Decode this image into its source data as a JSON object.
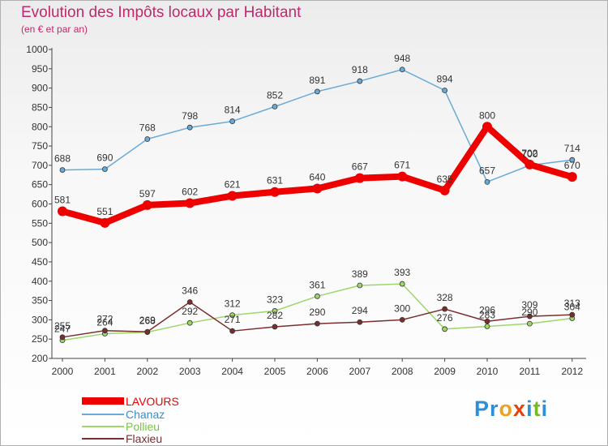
{
  "header": {
    "title": "Evolution des Impôts locaux par Habitant",
    "subtitle": "(en € et par an)"
  },
  "logo": {
    "letters": [
      "P",
      "r",
      "o",
      "x",
      "i",
      "t",
      "i"
    ],
    "colors": [
      "#2f8fd6",
      "#2f8fd6",
      "#f0a020",
      "#e8400c",
      "#2f8fd6",
      "#7ab828",
      "#2f8fd6"
    ]
  },
  "chart_data": {
    "type": "line",
    "title": "Evolution des Impôts locaux par Habitant",
    "subtitle": "(en € et par an)",
    "xlabel": "",
    "ylabel": "",
    "x": [
      "2000",
      "2001",
      "2002",
      "2003",
      "2004",
      "2005",
      "2006",
      "2007",
      "2008",
      "2009",
      "2010",
      "2011",
      "2012"
    ],
    "ylim": [
      200,
      1000
    ],
    "yticks": [
      200,
      250,
      300,
      350,
      400,
      450,
      500,
      550,
      600,
      650,
      700,
      750,
      800,
      850,
      900,
      950,
      1000
    ],
    "grid": false,
    "legend_position": "bottom-left",
    "series": [
      {
        "name": "Chanaz",
        "color": "#6aaad8",
        "values": [
          688,
          690,
          768,
          798,
          814,
          852,
          891,
          918,
          948,
          894,
          657,
          700,
          714
        ],
        "labels": [
          "688",
          "690",
          "768",
          "798",
          "814",
          "852",
          "891",
          "918",
          "948",
          "894",
          "657",
          "700",
          "714"
        ]
      },
      {
        "name": "Pollieu",
        "color": "#9fd66a",
        "values": [
          247,
          264,
          268,
          292,
          312,
          323,
          361,
          389,
          393,
          276,
          283,
          290,
          304
        ],
        "labels": [
          "247",
          "264",
          "268",
          "292",
          "312",
          "323",
          "361",
          "389",
          "393",
          "276",
          "283",
          "290",
          "304"
        ]
      },
      {
        "name": "Flaxieu",
        "color": "#7a2e2e",
        "values": [
          255,
          272,
          269,
          346,
          271,
          282,
          290,
          294,
          300,
          328,
          296,
          309,
          313
        ],
        "labels": [
          "255",
          "272",
          "269",
          "346",
          "271",
          "282",
          "290",
          "294",
          "300",
          "328",
          "296",
          "309",
          "313"
        ]
      },
      {
        "name": "LAVOURS",
        "color": "#ee0000",
        "values": [
          581,
          551,
          597,
          602,
          621,
          631,
          640,
          667,
          671,
          635,
          800,
          702,
          670
        ],
        "labels": [
          "581",
          "551",
          "597",
          "602",
          "621",
          "631",
          "640",
          "667",
          "671",
          "635",
          "800",
          "702",
          "670"
        ]
      }
    ],
    "legend": [
      {
        "name": "LAVOURS",
        "color": "#ee0000",
        "label_color": "#ee0000"
      },
      {
        "name": "Chanaz",
        "color": "#6aaad8",
        "label_color": "#3a8ec8"
      },
      {
        "name": "Pollieu",
        "color": "#9fd66a",
        "label_color": "#7cc24a"
      },
      {
        "name": "Flaxieu",
        "color": "#7a2e2e",
        "label_color": "#7a2e2e"
      }
    ]
  }
}
